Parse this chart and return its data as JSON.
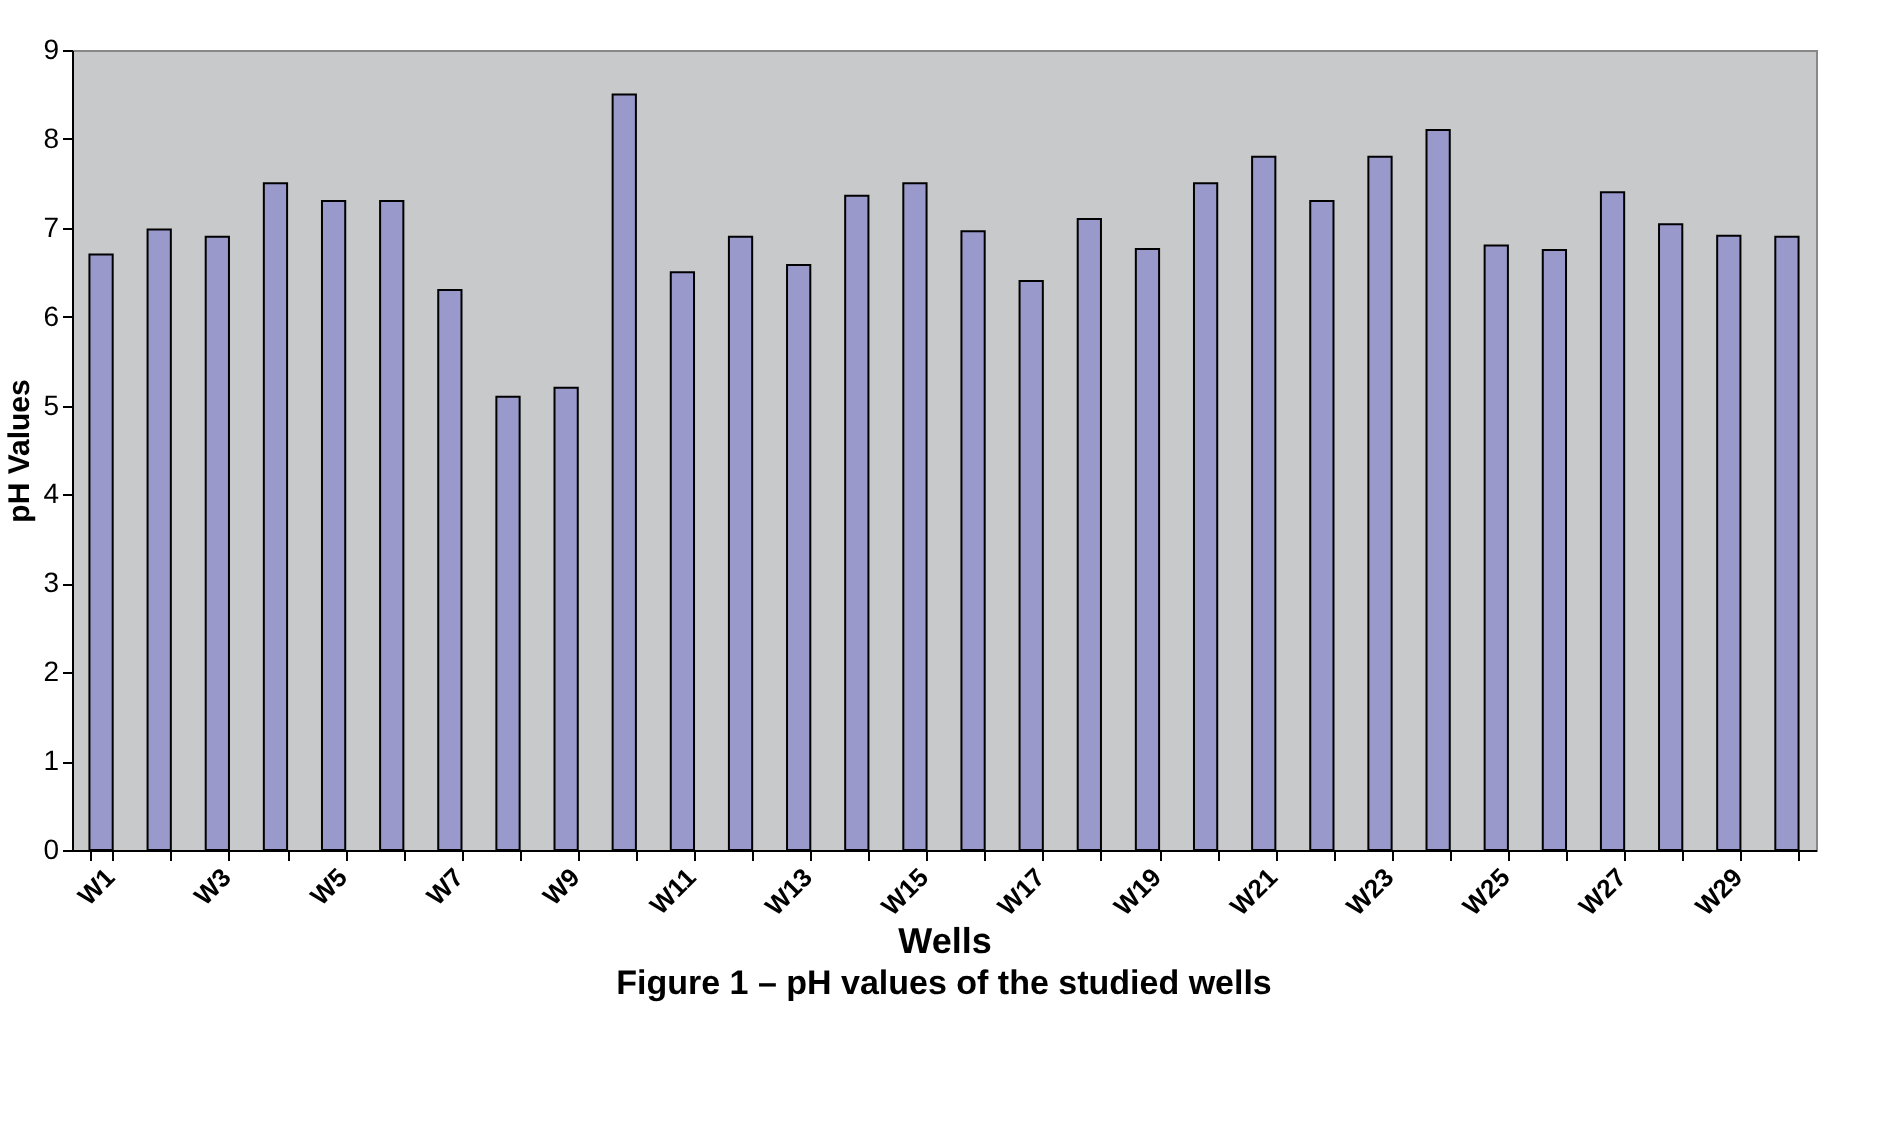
{
  "chart_data": {
    "type": "bar",
    "xlabel": "Wells",
    "ylabel": "pH Values",
    "annotations": [
      "Figure 1 – pH values of the studied wells"
    ],
    "categories": [
      "W1",
      null,
      "W3",
      null,
      "W5",
      null,
      "W7",
      null,
      "W9",
      null,
      "W11",
      null,
      "W13",
      null,
      "W15",
      null,
      "W17",
      null,
      "W19",
      null,
      "W21",
      null,
      "W23",
      null,
      "W25",
      null,
      "W27",
      null,
      "W29",
      null
    ],
    "values": [
      6.7,
      6.98,
      6.9,
      7.5,
      7.3,
      7.3,
      6.3,
      5.1,
      5.2,
      8.5,
      6.5,
      6.9,
      6.58,
      7.36,
      7.5,
      6.96,
      6.4,
      7.1,
      6.76,
      7.5,
      7.8,
      7.3,
      7.8,
      8.1,
      6.8,
      6.75,
      7.4,
      7.04,
      6.91,
      6.9
    ],
    "color": "#9999cc",
    "ylim": [
      0,
      9
    ],
    "yticks": [
      0,
      1,
      2,
      3,
      4,
      5,
      6,
      7,
      8,
      9
    ]
  }
}
